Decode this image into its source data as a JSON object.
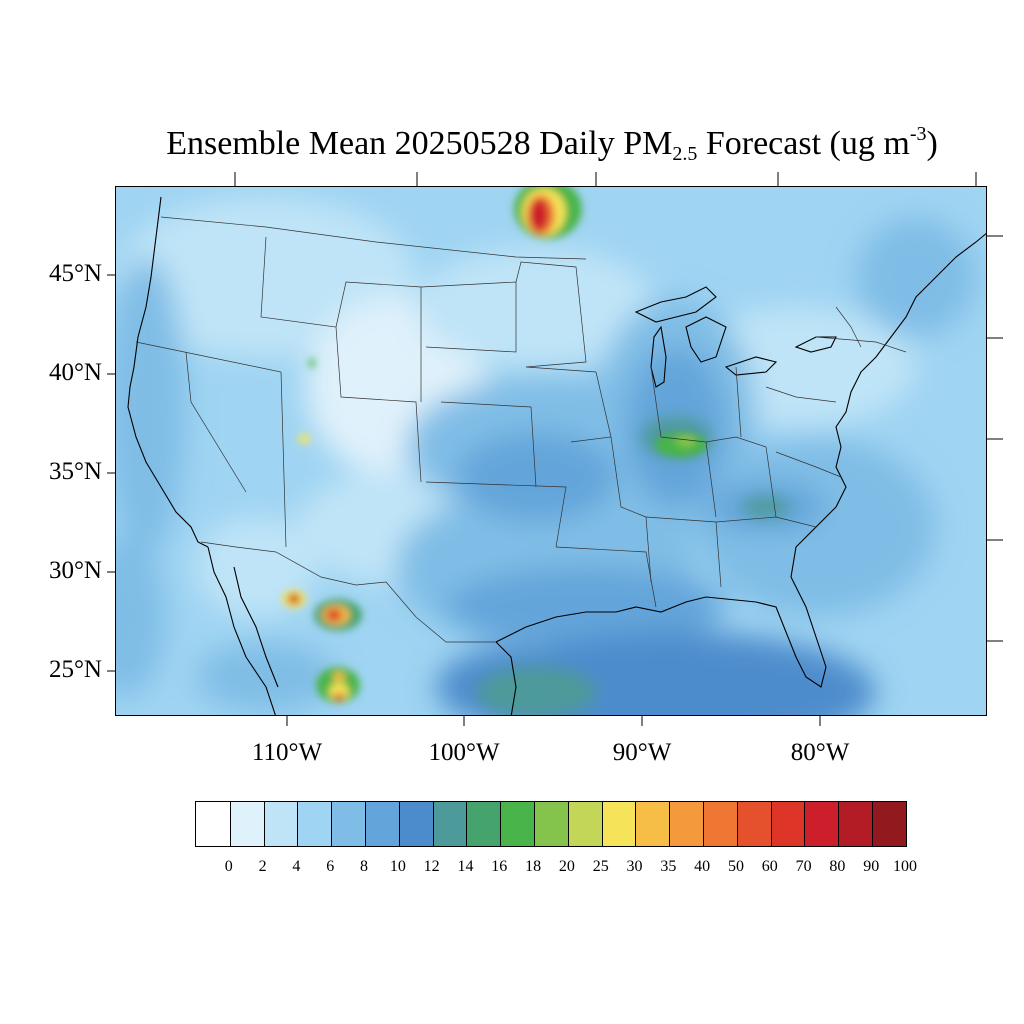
{
  "title": {
    "prefix": "Ensemble Mean 20250528 Daily PM",
    "sub": "2.5",
    "middle": " Forecast (ug m",
    "sup": "-3",
    "suffix": ")"
  },
  "axes": {
    "lat_labels": [
      "45°N",
      "40°N",
      "35°N",
      "30°N",
      "25°N"
    ],
    "lon_labels": [
      "110°W",
      "100°W",
      "90°W",
      "80°W"
    ]
  },
  "colorbar": {
    "levels": [
      "0",
      "2",
      "4",
      "6",
      "8",
      "10",
      "12",
      "14",
      "16",
      "18",
      "20",
      "25",
      "30",
      "35",
      "40",
      "50",
      "60",
      "70",
      "80",
      "90",
      "100"
    ],
    "colors": [
      "#ffffff",
      "#dff1fb",
      "#bfe4f7",
      "#9fd4f2",
      "#80bde6",
      "#63a5da",
      "#4d8ccc",
      "#4d9a9a",
      "#45a36d",
      "#49b44a",
      "#85c44c",
      "#c4d658",
      "#f5e45a",
      "#f7be47",
      "#f59a3c",
      "#ef7633",
      "#e5512d",
      "#dd3527",
      "#cc1f2b",
      "#b31c24",
      "#921a1f"
    ]
  },
  "map": {
    "background_color": "#9fd4f2",
    "projection": "Lambert Conformal",
    "region": "CONUS"
  }
}
